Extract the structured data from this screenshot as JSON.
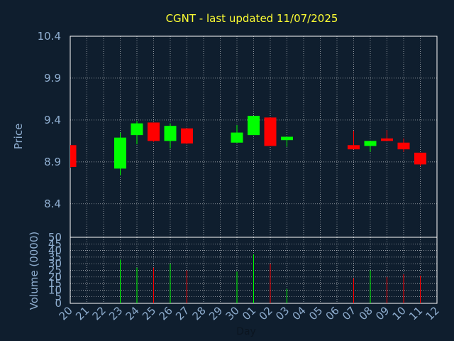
{
  "title": "CGNT - last updated 11/07/2025",
  "colors": {
    "background": "#0f1e2e",
    "title": "#ffff33",
    "axis_text": "#8faed0",
    "grid": "#ffffff",
    "up": "#00ff00",
    "down": "#ff0000"
  },
  "chart_data": [
    {
      "type": "candlestick",
      "ylabel": "Price",
      "ylim": [
        8.0,
        10.4
      ],
      "y_ticks": [
        "10.4",
        "9.9",
        "9.4",
        "8.9",
        "8.4"
      ],
      "x_tick_labels": [
        "20",
        "21",
        "22",
        "23",
        "24",
        "25",
        "26",
        "27",
        "28",
        "29",
        "30",
        "01",
        "02",
        "03",
        "04",
        "05",
        "06",
        "07",
        "08",
        "09",
        "10",
        "11",
        "12"
      ],
      "grid": true,
      "candles": [
        {
          "day": "20",
          "open": 9.1,
          "high": 9.1,
          "low": 8.83,
          "close": 8.84
        },
        {
          "day": "23",
          "open": 8.82,
          "high": 9.25,
          "low": 8.74,
          "close": 9.19
        },
        {
          "day": "24",
          "open": 9.22,
          "high": 9.39,
          "low": 9.11,
          "close": 9.36
        },
        {
          "day": "25",
          "open": 9.37,
          "high": 9.37,
          "low": 9.14,
          "close": 9.15
        },
        {
          "day": "26",
          "open": 9.15,
          "high": 9.36,
          "low": 9.06,
          "close": 9.33
        },
        {
          "day": "27",
          "open": 9.3,
          "high": 9.3,
          "low": 9.11,
          "close": 9.12
        },
        {
          "day": "30",
          "open": 9.13,
          "high": 9.34,
          "low": 9.13,
          "close": 9.25
        },
        {
          "day": "01",
          "open": 9.22,
          "high": 9.45,
          "low": 9.22,
          "close": 9.45
        },
        {
          "day": "02",
          "open": 9.43,
          "high": 9.43,
          "low": 9.09,
          "close": 9.09
        },
        {
          "day": "03",
          "open": 9.16,
          "high": 9.2,
          "low": 9.08,
          "close": 9.2
        },
        {
          "day": "07",
          "open": 9.1,
          "high": 9.27,
          "low": 9.05,
          "close": 9.05
        },
        {
          "day": "08",
          "open": 9.09,
          "high": 9.15,
          "low": 9.02,
          "close": 9.15
        },
        {
          "day": "09",
          "open": 9.18,
          "high": 9.28,
          "low": 9.15,
          "close": 9.15
        },
        {
          "day": "10",
          "open": 9.13,
          "high": 9.18,
          "low": 9.02,
          "close": 9.05
        },
        {
          "day": "11",
          "open": 9.01,
          "high": 9.01,
          "low": 8.85,
          "close": 8.87
        }
      ]
    },
    {
      "type": "bar",
      "ylabel": "Volume (0000)",
      "xlabel": "Day",
      "ylim": [
        0,
        50
      ],
      "y_ticks": [
        "50",
        "45",
        "40",
        "35",
        "30",
        "25",
        "20",
        "15",
        "10",
        "5",
        "0"
      ],
      "grid": true,
      "bars": [
        {
          "day": "23",
          "value": 33,
          "direction": "up"
        },
        {
          "day": "24",
          "value": 27,
          "direction": "up"
        },
        {
          "day": "25",
          "value": 27,
          "direction": "down"
        },
        {
          "day": "26",
          "value": 30,
          "direction": "up"
        },
        {
          "day": "27",
          "value": 25,
          "direction": "down"
        },
        {
          "day": "30",
          "value": 24,
          "direction": "up"
        },
        {
          "day": "01",
          "value": 37,
          "direction": "up"
        },
        {
          "day": "02",
          "value": 30,
          "direction": "down"
        },
        {
          "day": "03",
          "value": 11,
          "direction": "up"
        },
        {
          "day": "07",
          "value": 19,
          "direction": "down"
        },
        {
          "day": "08",
          "value": 25,
          "direction": "up"
        },
        {
          "day": "09",
          "value": 20,
          "direction": "down"
        },
        {
          "day": "10",
          "value": 22,
          "direction": "down"
        },
        {
          "day": "11",
          "value": 21,
          "direction": "down"
        }
      ]
    }
  ]
}
